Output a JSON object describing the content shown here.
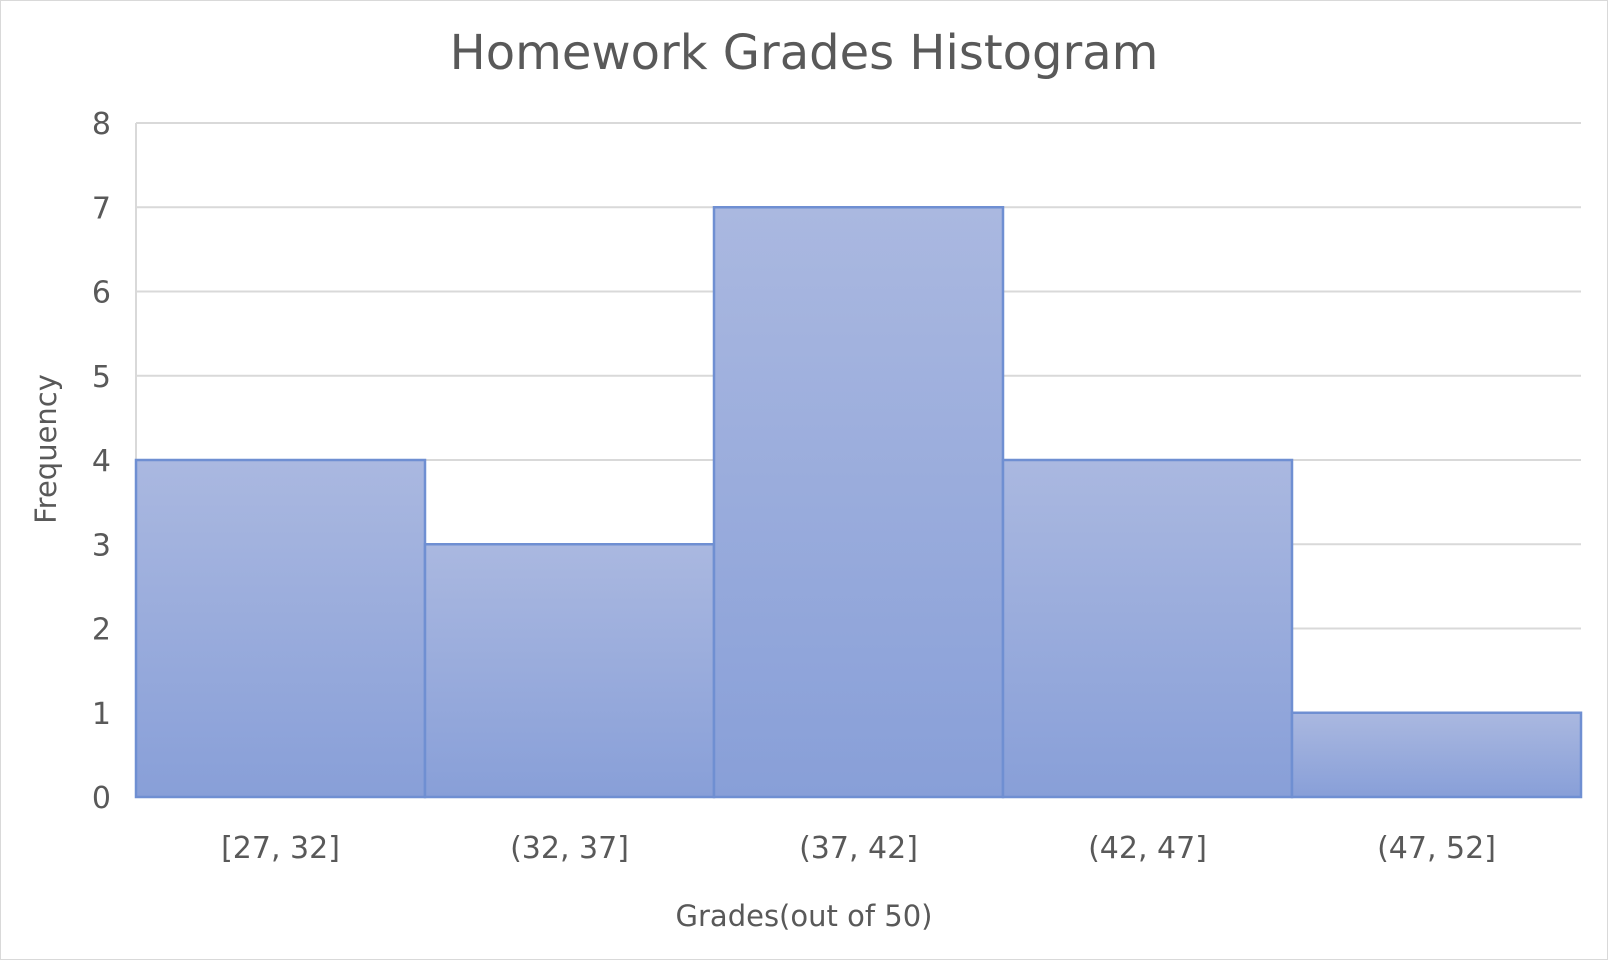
{
  "chart_data": {
    "type": "bar",
    "title": "Homework Grades Histogram",
    "xlabel": "Grades(out of 50)",
    "ylabel": "Frequency",
    "categories": [
      "[27, 32]",
      "(32, 37]",
      "(37, 42]",
      "(42, 47]",
      "(47, 52]"
    ],
    "values": [
      4,
      3,
      7,
      4,
      1
    ],
    "ylim": [
      0,
      8
    ],
    "yticks": [
      0,
      1,
      2,
      3,
      4,
      5,
      6,
      7,
      8
    ],
    "grid": true,
    "legend": "none",
    "colors": {
      "bar_top": "#aab8e0",
      "bar_bottom": "#889fd8",
      "bar_border": "#6f8fd2",
      "grid": "#d9d9d9",
      "text": "#595959"
    }
  }
}
